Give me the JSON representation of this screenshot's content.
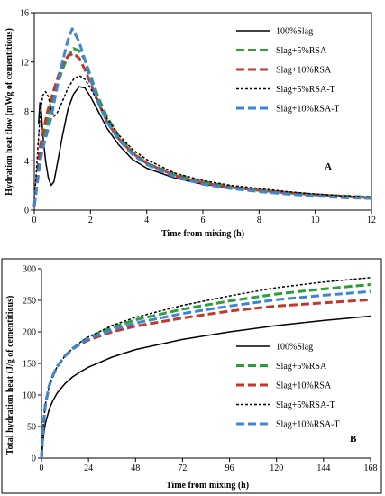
{
  "chart_data": [
    {
      "type": "line",
      "panel_label": "A",
      "xlabel": "Time from mixing (h)",
      "ylabel": "Hydration heat flow (mWg of cementitious)",
      "xlim": [
        0,
        12
      ],
      "ylim": [
        0,
        16
      ],
      "xticks": [
        0,
        2,
        4,
        6,
        8,
        10,
        12
      ],
      "yticks": [
        0,
        4,
        8,
        12,
        16
      ],
      "grid": false,
      "legend_position": "top-right",
      "series": [
        {
          "name": "100%Slag",
          "color": "#000000",
          "dash": "solid",
          "x": [
            0.15,
            0.2,
            0.25,
            0.3,
            0.4,
            0.5,
            0.6,
            0.7,
            0.8,
            1.0,
            1.2,
            1.4,
            1.6,
            1.8,
            2.0,
            2.3,
            2.6,
            3.0,
            3.5,
            4.0,
            5.0,
            6.0,
            7.0,
            8.0,
            9.0,
            10.0,
            11.0,
            12.0
          ],
          "y": [
            7.0,
            8.7,
            8.0,
            6.2,
            4.0,
            2.6,
            2.0,
            2.3,
            3.5,
            6.0,
            8.2,
            9.4,
            10.0,
            9.9,
            9.2,
            7.9,
            6.6,
            5.3,
            4.1,
            3.4,
            2.6,
            2.1,
            1.8,
            1.6,
            1.4,
            1.25,
            1.1,
            1.0
          ]
        },
        {
          "name": "Slag+5%RSA",
          "color": "#2e9e3b",
          "dash": "long-dash",
          "x": [
            0.0,
            0.1,
            0.2,
            0.3,
            0.45,
            0.6,
            0.8,
            1.0,
            1.2,
            1.4,
            1.6,
            1.8,
            2.0,
            2.3,
            2.6,
            3.0,
            3.5,
            4.0,
            5.0,
            6.0,
            7.0,
            8.0,
            9.0,
            10.0,
            11.0,
            12.0
          ],
          "y": [
            0.3,
            2.5,
            4.5,
            5.5,
            7.0,
            8.5,
            10.0,
            11.4,
            12.5,
            13.1,
            12.9,
            12.2,
            10.9,
            9.0,
            7.5,
            6.0,
            4.7,
            3.8,
            2.9,
            2.3,
            1.9,
            1.6,
            1.4,
            1.25,
            1.15,
            1.05
          ]
        },
        {
          "name": "Slag+10%RSA",
          "color": "#c0392b",
          "dash": "long-dash",
          "x": [
            0.0,
            0.1,
            0.2,
            0.3,
            0.45,
            0.6,
            0.8,
            1.0,
            1.2,
            1.4,
            1.6,
            1.8,
            2.0,
            2.3,
            2.6,
            3.0,
            3.5,
            4.0,
            5.0,
            6.0,
            7.0,
            8.0,
            9.0,
            10.0,
            11.0,
            12.0
          ],
          "y": [
            0.3,
            2.8,
            5.0,
            6.2,
            7.8,
            9.0,
            10.5,
            11.8,
            12.5,
            12.7,
            12.3,
            11.4,
            10.3,
            8.6,
            7.1,
            5.8,
            4.6,
            3.8,
            2.8,
            2.2,
            1.85,
            1.6,
            1.4,
            1.25,
            1.1,
            1.0
          ]
        },
        {
          "name": "Slag+5%RSA-T",
          "color": "#000000",
          "dash": "short-dash",
          "x": [
            0.0,
            0.1,
            0.2,
            0.3,
            0.4,
            0.5,
            0.6,
            0.7,
            0.8,
            1.0,
            1.2,
            1.4,
            1.6,
            1.8,
            2.0,
            2.3,
            2.6,
            3.0,
            3.5,
            4.0,
            5.0,
            6.0,
            7.0,
            8.0,
            9.0,
            10.0,
            11.0,
            12.0
          ],
          "y": [
            0.5,
            4.0,
            7.5,
            9.3,
            9.6,
            9.2,
            8.2,
            7.6,
            7.8,
            8.8,
            9.9,
            10.6,
            10.9,
            10.6,
            9.9,
            8.6,
            7.4,
            6.1,
            4.9,
            4.1,
            3.0,
            2.4,
            2.0,
            1.75,
            1.5,
            1.3,
            1.15,
            1.05
          ]
        },
        {
          "name": "Slag+10%RSA-T",
          "color": "#3b86d6",
          "dash": "long-dash",
          "x": [
            0.0,
            0.1,
            0.2,
            0.3,
            0.45,
            0.6,
            0.8,
            1.0,
            1.2,
            1.35,
            1.45,
            1.6,
            1.8,
            2.0,
            2.3,
            2.6,
            3.0,
            3.5,
            4.0,
            5.0,
            6.0,
            7.0,
            8.0,
            9.0,
            10.0,
            11.0,
            12.0
          ],
          "y": [
            0.3,
            2.0,
            3.8,
            5.0,
            6.2,
            7.5,
            9.8,
            12.0,
            13.8,
            14.7,
            14.3,
            13.6,
            12.2,
            10.6,
            8.6,
            7.1,
            5.7,
            4.5,
            3.7,
            2.7,
            2.1,
            1.75,
            1.5,
            1.3,
            1.15,
            1.0,
            0.95
          ]
        }
      ]
    },
    {
      "type": "line",
      "panel_label": "B",
      "xlabel": "Time from mixing (h)",
      "ylabel": "Total hydration heat (J/g of cementitious)",
      "xlim": [
        0,
        168
      ],
      "ylim": [
        0,
        300
      ],
      "xticks": [
        0,
        24,
        48,
        72,
        96,
        120,
        144,
        168
      ],
      "yticks": [
        0,
        50,
        100,
        150,
        200,
        250,
        300
      ],
      "grid": false,
      "legend_position": "bottom-right",
      "series": [
        {
          "name": "100%Slag",
          "color": "#000000",
          "dash": "solid",
          "x": [
            0,
            1,
            2,
            4,
            6,
            8,
            12,
            16,
            20,
            24,
            36,
            48,
            72,
            96,
            120,
            144,
            168
          ],
          "y": [
            0,
            35,
            55,
            78,
            92,
            103,
            118,
            129,
            137,
            144,
            160,
            172,
            188,
            200,
            210,
            218,
            225
          ]
        },
        {
          "name": "Slag+5%RSA",
          "color": "#2e9e3b",
          "dash": "long-dash",
          "x": [
            0,
            1,
            2,
            4,
            6,
            8,
            12,
            16,
            20,
            24,
            36,
            48,
            72,
            96,
            120,
            144,
            168
          ],
          "y": [
            0,
            55,
            85,
            115,
            132,
            145,
            162,
            174,
            183,
            191,
            207,
            219,
            236,
            249,
            260,
            268,
            275
          ]
        },
        {
          "name": "Slag+10%RSA",
          "color": "#c0392b",
          "dash": "long-dash",
          "x": [
            0,
            1,
            2,
            4,
            6,
            8,
            12,
            16,
            20,
            24,
            36,
            48,
            72,
            96,
            120,
            144,
            168
          ],
          "y": [
            0,
            55,
            85,
            115,
            132,
            145,
            162,
            173,
            181,
            187,
            200,
            209,
            222,
            233,
            241,
            246,
            251
          ]
        },
        {
          "name": "Slag+5%RSA-T",
          "color": "#000000",
          "dash": "short-dash",
          "x": [
            0,
            1,
            2,
            4,
            6,
            8,
            12,
            16,
            20,
            24,
            36,
            48,
            72,
            96,
            120,
            144,
            168
          ],
          "y": [
            0,
            55,
            85,
            115,
            132,
            145,
            162,
            174,
            184,
            192,
            210,
            223,
            242,
            257,
            270,
            279,
            286
          ]
        },
        {
          "name": "Slag+10%RSA-T",
          "color": "#3b86d6",
          "dash": "long-dash",
          "x": [
            0,
            1,
            2,
            4,
            6,
            8,
            12,
            16,
            20,
            24,
            36,
            48,
            72,
            96,
            120,
            144,
            168
          ],
          "y": [
            0,
            55,
            85,
            115,
            132,
            145,
            162,
            173,
            182,
            189,
            203,
            214,
            229,
            241,
            251,
            258,
            264
          ]
        }
      ]
    }
  ]
}
